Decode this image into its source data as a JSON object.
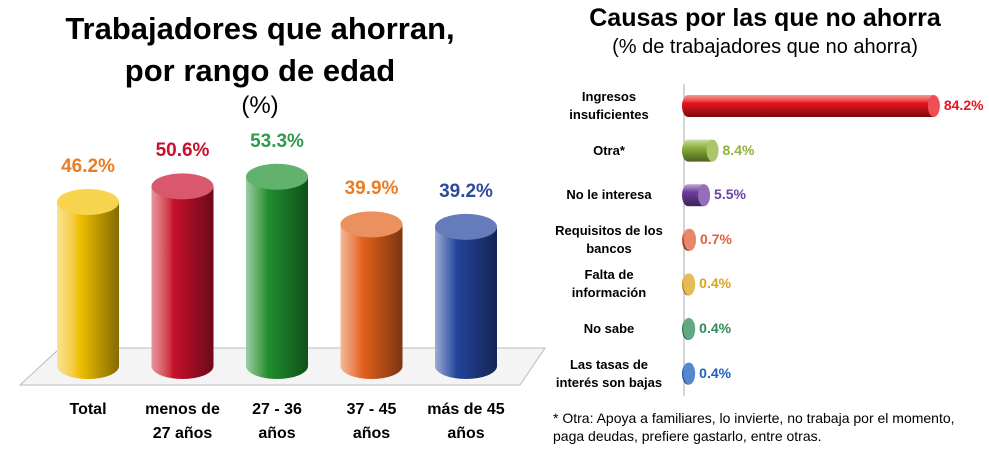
{
  "chart_data": [
    {
      "type": "bar3d",
      "title": "Trabajadores que ahorran, por rango de edad",
      "subtitle": "(%)",
      "categories": [
        "Total",
        "menos de 27 años",
        "27 - 36 años",
        "37 - 45 años",
        "más de 45 años"
      ],
      "values": [
        46.2,
        50.6,
        53.3,
        39.9,
        39.2
      ],
      "value_labels": [
        "46.2%",
        "50.6%",
        "53.3%",
        "39.9%",
        "39.2%"
      ],
      "colors": [
        "#f2c200",
        "#c8102e",
        "#1f8f2f",
        "#e3621c",
        "#24449c"
      ],
      "label_colors": [
        "#ec7c22",
        "#c8102e",
        "#2e9a4e",
        "#ec7c22",
        "#2e4a9a"
      ]
    },
    {
      "type": "hbar3d",
      "title": "Causas por las que no ahorra",
      "subtitle": "(% de trabajadores que no ahorra)",
      "categories": [
        "Ingresos insuficientes",
        "Otra*",
        "No le interesa",
        "Requisitos de los bancos",
        "Falta de información",
        "No sabe",
        "Las tasas de interés son bajas"
      ],
      "values": [
        84.2,
        8.4,
        5.5,
        0.7,
        0.4,
        0.4,
        0.4
      ],
      "value_labels": [
        "84.2%",
        "8.4%",
        "5.5%",
        "0.7%",
        "0.4%",
        "0.4%",
        "0.4%"
      ],
      "colors": [
        "#e8141c",
        "#8db33a",
        "#6d3fa0",
        "#e0603a",
        "#d9a520",
        "#2e8b57",
        "#1f5fbf"
      ],
      "note": "* Otra: Apoya a familiares, lo invierte, no trabaja por el momento, paga deudas, prefiere gastarlo, entre otras."
    }
  ]
}
